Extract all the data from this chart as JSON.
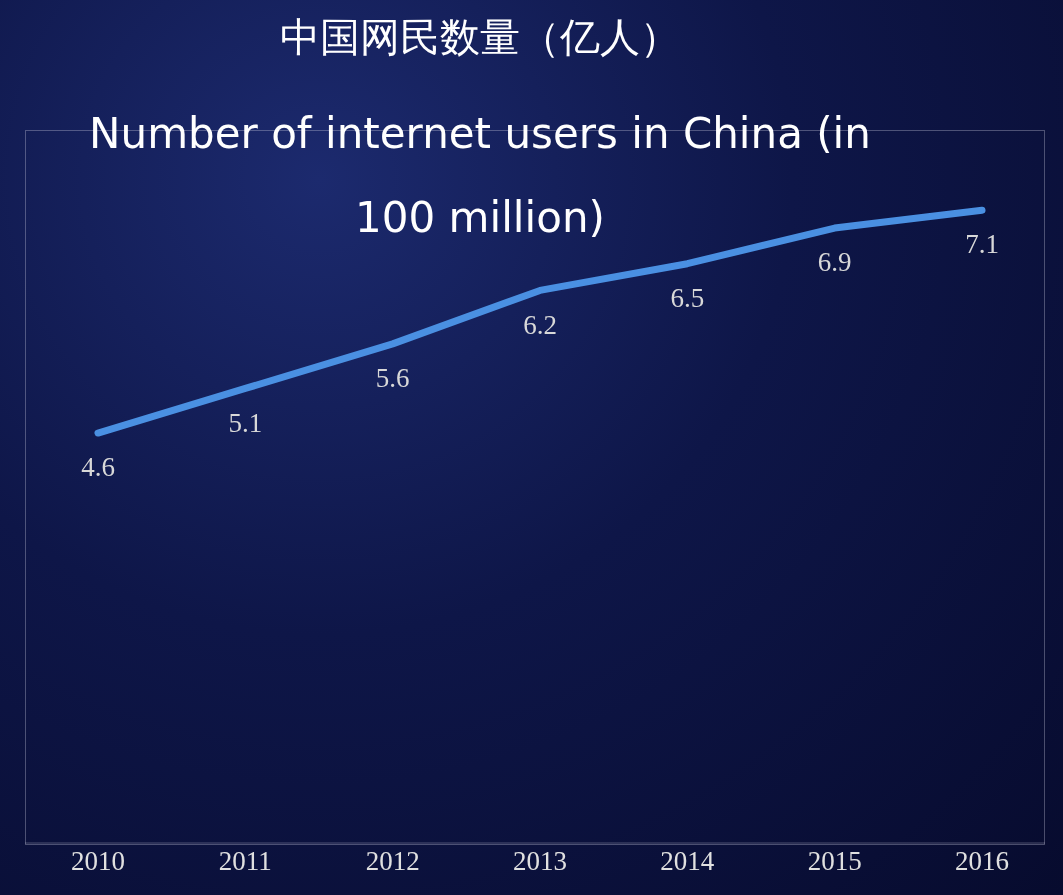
{
  "chart_data": {
    "type": "line",
    "title": "中国网民数量（亿人）",
    "subtitle": "Number of internet users in China (in 100 million)",
    "categories": [
      "2010",
      "2011",
      "2012",
      "2013",
      "2014",
      "2015",
      "2016"
    ],
    "series": [
      {
        "color": "#4a90e2",
        "values": [
          4.6,
          5.1,
          5.6,
          6.2,
          6.5,
          6.9,
          7.1
        ]
      }
    ],
    "ylim": [
      0,
      8
    ],
    "tick_labels": "x",
    "data_labels": true,
    "grid": false,
    "legend": false,
    "marker": "none",
    "line_style": "solid"
  }
}
